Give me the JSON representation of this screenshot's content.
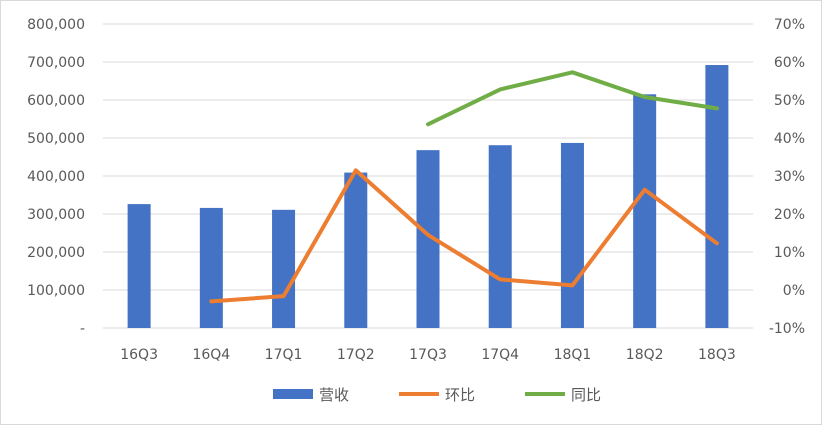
{
  "chart_data": {
    "type": "bar",
    "categories": [
      "16Q3",
      "16Q4",
      "17Q1",
      "17Q2",
      "17Q3",
      "17Q4",
      "18Q1",
      "18Q2",
      "18Q3"
    ],
    "y_left": {
      "range": [
        0,
        800000
      ],
      "tick_values": [
        0,
        100000,
        200000,
        300000,
        400000,
        500000,
        600000,
        700000,
        800000
      ],
      "tick_labels": [
        "-",
        "100,000",
        "200,000",
        "300,000",
        "400,000",
        "500,000",
        "600,000",
        "700,000",
        "800,000"
      ]
    },
    "y_right": {
      "range": [
        -10,
        70
      ],
      "tick_values": [
        -10,
        0,
        10,
        20,
        30,
        40,
        50,
        60,
        70
      ],
      "tick_labels": [
        "-10%",
        "0%",
        "10%",
        "20%",
        "30%",
        "40%",
        "50%",
        "60%",
        "70%"
      ]
    },
    "series": [
      {
        "name": "营收",
        "type": "bar",
        "axis": "left",
        "color": "#4472c4",
        "values": [
          326000,
          316000,
          311000,
          409000,
          468000,
          481000,
          487000,
          615000,
          692000
        ]
      },
      {
        "name": "环比",
        "type": "line",
        "axis": "right",
        "color": "#ed7d31",
        "values": [
          null,
          -3.0,
          -1.6,
          31.5,
          14.5,
          2.8,
          1.2,
          26.4,
          12.3
        ]
      },
      {
        "name": "同比",
        "type": "line",
        "axis": "right",
        "color": "#70ad47",
        "values": [
          null,
          null,
          null,
          null,
          43.6,
          52.8,
          57.3,
          50.8,
          47.8
        ]
      }
    ],
    "grid": true,
    "legend_position": "bottom"
  }
}
